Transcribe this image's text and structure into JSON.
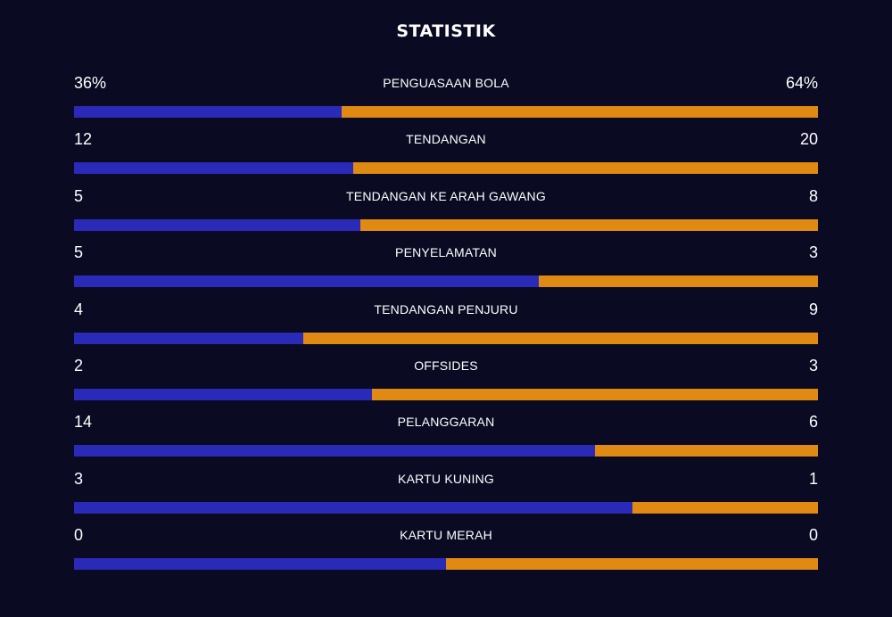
{
  "title": "STATISTIK",
  "colors": {
    "background": "#0a0a22",
    "home": "#2a2ab8",
    "away": "#e08a14"
  },
  "stats": [
    {
      "label": "PENGUASAAN BOLA",
      "home": "36%",
      "away": "64%",
      "home_share": 0.36
    },
    {
      "label": "TENDANGAN",
      "home": "12",
      "away": "20",
      "home_share": 0.375
    },
    {
      "label": "TENDANGAN KE ARAH GAWANG",
      "home": "5",
      "away": "8",
      "home_share": 0.385
    },
    {
      "label": "PENYELAMATAN",
      "home": "5",
      "away": "3",
      "home_share": 0.625
    },
    {
      "label": "TENDANGAN PENJURU",
      "home": "4",
      "away": "9",
      "home_share": 0.308
    },
    {
      "label": "OFFSIDES",
      "home": "2",
      "away": "3",
      "home_share": 0.4
    },
    {
      "label": "PELANGGARAN",
      "home": "14",
      "away": "6",
      "home_share": 0.7
    },
    {
      "label": "KARTU KUNING",
      "home": "3",
      "away": "1",
      "home_share": 0.75
    },
    {
      "label": "KARTU MERAH",
      "home": "0",
      "away": "0",
      "home_share": 0.5
    }
  ]
}
